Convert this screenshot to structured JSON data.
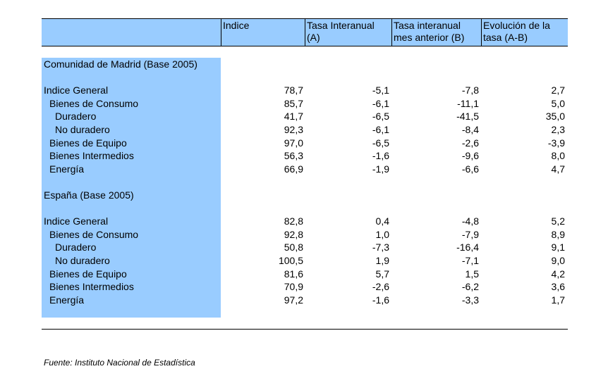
{
  "header": {
    "col0": "",
    "col1": "Indice",
    "col2_line1": "Tasa Interanual",
    "col2_line2": "(A)",
    "col3_line1": "Tasa interanual",
    "col3_line2": "mes anterior (B)",
    "col4_line1": "Evolución de la",
    "col4_line2": "tasa (A-B)"
  },
  "sections": [
    {
      "title": "Comunidad de Madrid (Base 2005)",
      "rows": [
        {
          "label": "Indice General",
          "indice": "78,7",
          "tasa_a": "-5,1",
          "tasa_b": "-7,8",
          "evolucion": "2,7"
        },
        {
          "label": "Bienes de Consumo",
          "indice": "85,7",
          "tasa_a": "-6,1",
          "tasa_b": "-11,1",
          "evolucion": "5,0"
        },
        {
          "label": "Duradero",
          "indice": "41,7",
          "tasa_a": "-6,5",
          "tasa_b": "-41,5",
          "evolucion": "35,0"
        },
        {
          "label": "No duradero",
          "indice": "92,3",
          "tasa_a": "-6,1",
          "tasa_b": "-8,4",
          "evolucion": "2,3"
        },
        {
          "label": "Bienes de Equipo",
          "indice": "97,0",
          "tasa_a": "-6,5",
          "tasa_b": "-2,6",
          "evolucion": "-3,9"
        },
        {
          "label": "Bienes Intermedios",
          "indice": "56,3",
          "tasa_a": "-1,6",
          "tasa_b": "-9,6",
          "evolucion": "8,0"
        },
        {
          "label": "Energía",
          "indice": "66,9",
          "tasa_a": "-1,9",
          "tasa_b": "-6,6",
          "evolucion": "4,7"
        }
      ]
    },
    {
      "title": "España (Base 2005)",
      "rows": [
        {
          "label": "Indice General",
          "indice": "82,8",
          "tasa_a": "0,4",
          "tasa_b": "-4,8",
          "evolucion": "5,2"
        },
        {
          "label": "Bienes de Consumo",
          "indice": "92,8",
          "tasa_a": "1,0",
          "tasa_b": "-7,9",
          "evolucion": "8,9"
        },
        {
          "label": "Duradero",
          "indice": "50,8",
          "tasa_a": "-7,3",
          "tasa_b": "-16,4",
          "evolucion": "9,1"
        },
        {
          "label": "No duradero",
          "indice": "100,5",
          "tasa_a": "1,9",
          "tasa_b": "-7,1",
          "evolucion": "9,0"
        },
        {
          "label": "Bienes de Equipo",
          "indice": "81,6",
          "tasa_a": "5,7",
          "tasa_b": "1,5",
          "evolucion": "4,2"
        },
        {
          "label": "Bienes Intermedios",
          "indice": "70,9",
          "tasa_a": "-2,6",
          "tasa_b": "-6,2",
          "evolucion": "3,6"
        },
        {
          "label": "Energía",
          "indice": "97,2",
          "tasa_a": "-1,6",
          "tasa_b": "-3,3",
          "evolucion": "1,7"
        }
      ]
    }
  ],
  "source": "Fuente: Instituto Nacional de Estadística",
  "colors": {
    "header_fill": "#99ccff",
    "label_column_fill": "#99ccff"
  }
}
